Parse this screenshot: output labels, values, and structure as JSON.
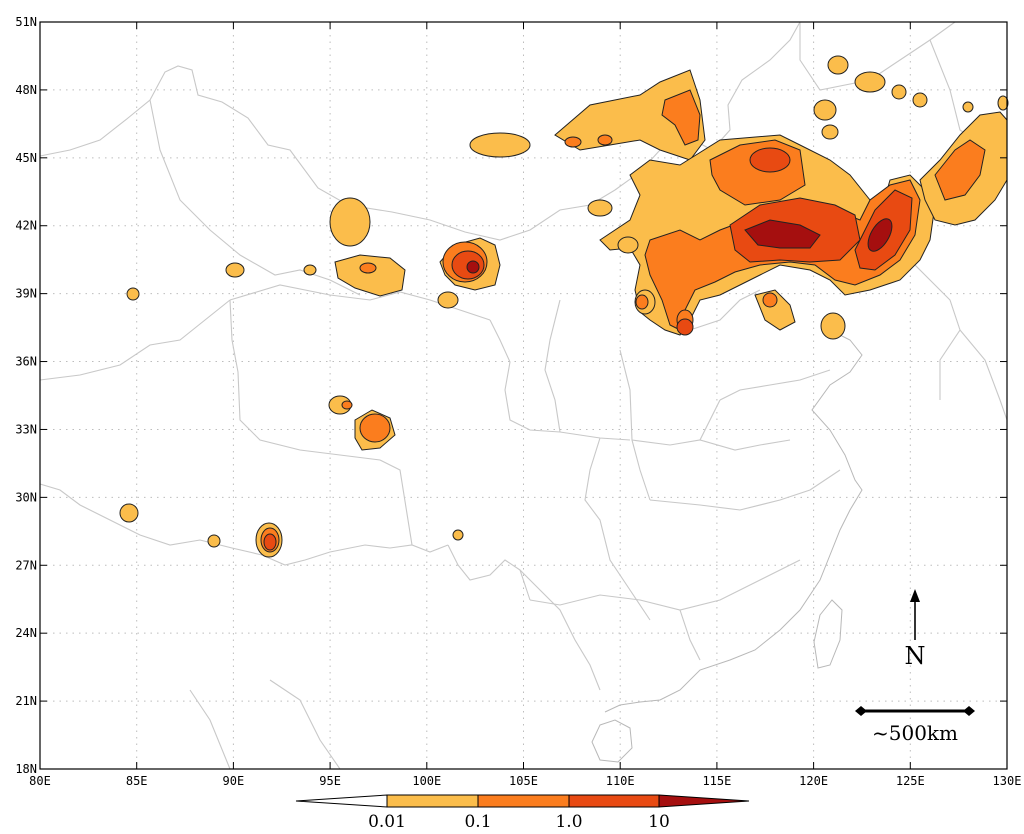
{
  "map": {
    "lon_ticks": [
      "80E",
      "85E",
      "90E",
      "95E",
      "100E",
      "105E",
      "110E",
      "115E",
      "120E",
      "125E",
      "130E"
    ],
    "lat_ticks": [
      "18N",
      "21N",
      "24N",
      "27N",
      "30N",
      "33N",
      "36N",
      "39N",
      "42N",
      "45N",
      "48N",
      "51N"
    ]
  },
  "colorbar": {
    "labels": [
      "0.01",
      "0.1",
      "1.0",
      "10"
    ],
    "colors": [
      "#ffffff",
      "#fbbd4b",
      "#fb7d1e",
      "#e84a12",
      "#a50f0f"
    ]
  },
  "north_arrow": {
    "label": "N"
  },
  "scale_bar": {
    "label": "~500km"
  }
}
